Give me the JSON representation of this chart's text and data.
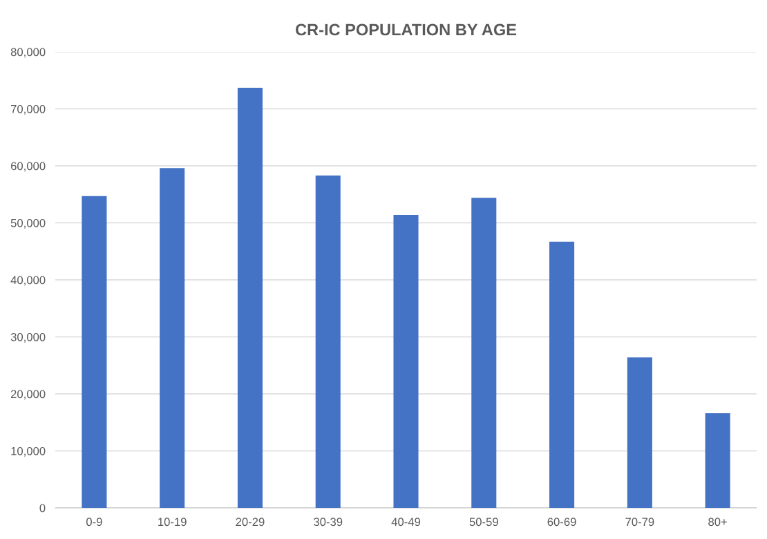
{
  "chart_data": {
    "type": "bar",
    "title": "CR-IC POPULATION BY AGE",
    "categories": [
      "0-9",
      "10-19",
      "20-29",
      "30-39",
      "40-49",
      "50-59",
      "60-69",
      "70-79",
      "80+"
    ],
    "values": [
      54700,
      59600,
      73700,
      58300,
      51400,
      54400,
      46700,
      26400,
      16600
    ],
    "color": "#4472c4",
    "ylim": [
      0,
      80000
    ],
    "yticks": [
      {
        "value": 0,
        "label": "0"
      },
      {
        "value": 10000,
        "label": "10,000"
      },
      {
        "value": 20000,
        "label": "20,000"
      },
      {
        "value": 30000,
        "label": "30,000"
      },
      {
        "value": 40000,
        "label": "40,000"
      },
      {
        "value": 50000,
        "label": "50,000"
      },
      {
        "value": 60000,
        "label": "60,000"
      },
      {
        "value": 70000,
        "label": "70,000"
      },
      {
        "value": 80000,
        "label": "80,000"
      }
    ],
    "grid": "y",
    "legend": false
  }
}
